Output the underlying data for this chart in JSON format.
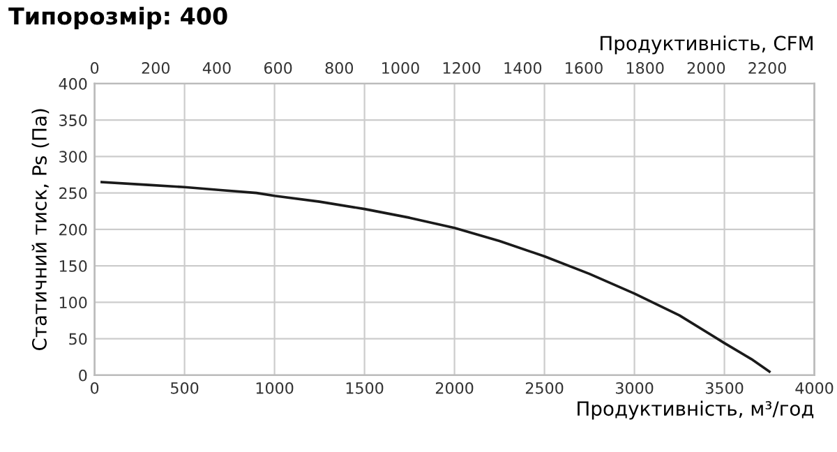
{
  "chart_data": {
    "type": "line",
    "title": "Типорозмір: 400",
    "x2label": "Продуктивність, CFM",
    "xlabel": "Продуктивність, м³/год",
    "ylabel": "Статичний тиск, Ps (Па)",
    "x": [
      40,
      300,
      500,
      700,
      900,
      1000,
      1250,
      1500,
      1750,
      2000,
      2250,
      2500,
      2750,
      3000,
      3250,
      3500,
      3650,
      3750
    ],
    "series": [
      {
        "color": "#1a1a1a",
        "values": [
          265,
          261,
          258,
          254,
          250,
          246,
          238,
          228,
          216,
          202,
          184,
          163,
          139,
          112,
          82,
          44,
          22,
          5
        ]
      }
    ],
    "xlim": [
      0,
      4000
    ],
    "xticks": [
      0,
      500,
      1000,
      1500,
      2000,
      2500,
      3000,
      3500,
      4000
    ],
    "x2lim": [
      0,
      2354
    ],
    "x2ticks": [
      0,
      200,
      400,
      600,
      800,
      1000,
      1200,
      1400,
      1600,
      1800,
      2000,
      2200
    ],
    "ylim": [
      0,
      400
    ],
    "yticks": [
      0,
      50,
      100,
      150,
      200,
      250,
      300,
      350,
      400
    ],
    "grid": true,
    "marker": "none",
    "line_style": "solid",
    "legend": false
  }
}
